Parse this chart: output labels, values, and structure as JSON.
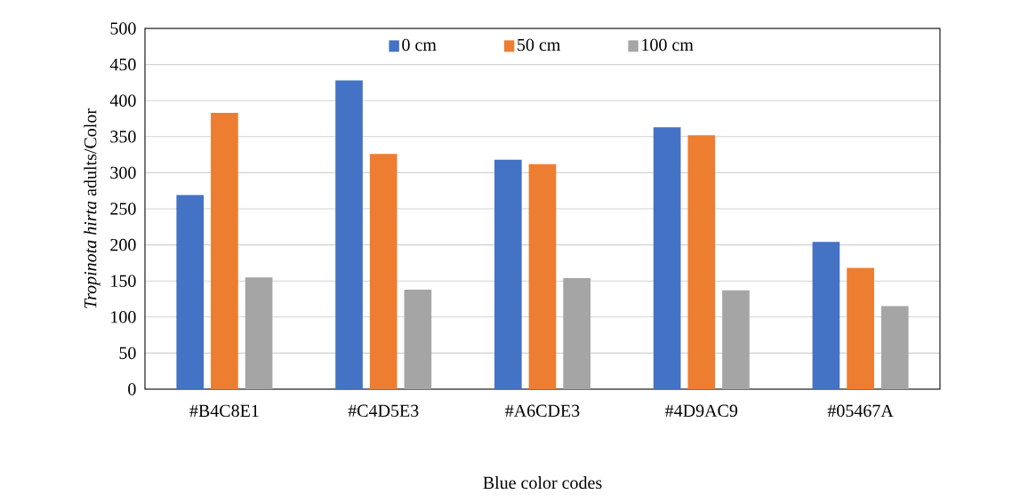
{
  "chart_data": {
    "type": "bar",
    "xlabel": "Blue color codes",
    "ylabel": "*Tropinota  hirta* adults/Color",
    "categories": [
      "#B4C8E1",
      "#C4D5E3",
      "#A6CDE3",
      "#4D9AC9",
      "#05467A"
    ],
    "series": [
      {
        "name": "0 cm",
        "color": "#4472c4",
        "values": [
          269,
          428,
          318,
          363,
          204
        ]
      },
      {
        "name": "50 cm",
        "color": "#ed7d31",
        "values": [
          383,
          326,
          312,
          352,
          168
        ]
      },
      {
        "name": "100 cm",
        "color": "#a5a5a5",
        "values": [
          155,
          138,
          154,
          137,
          115
        ]
      }
    ],
    "ylim": [
      0,
      500
    ],
    "yticks": [
      0,
      50,
      100,
      150,
      200,
      250,
      300,
      350,
      400,
      450,
      500
    ],
    "grid": "y",
    "legend": "top"
  }
}
